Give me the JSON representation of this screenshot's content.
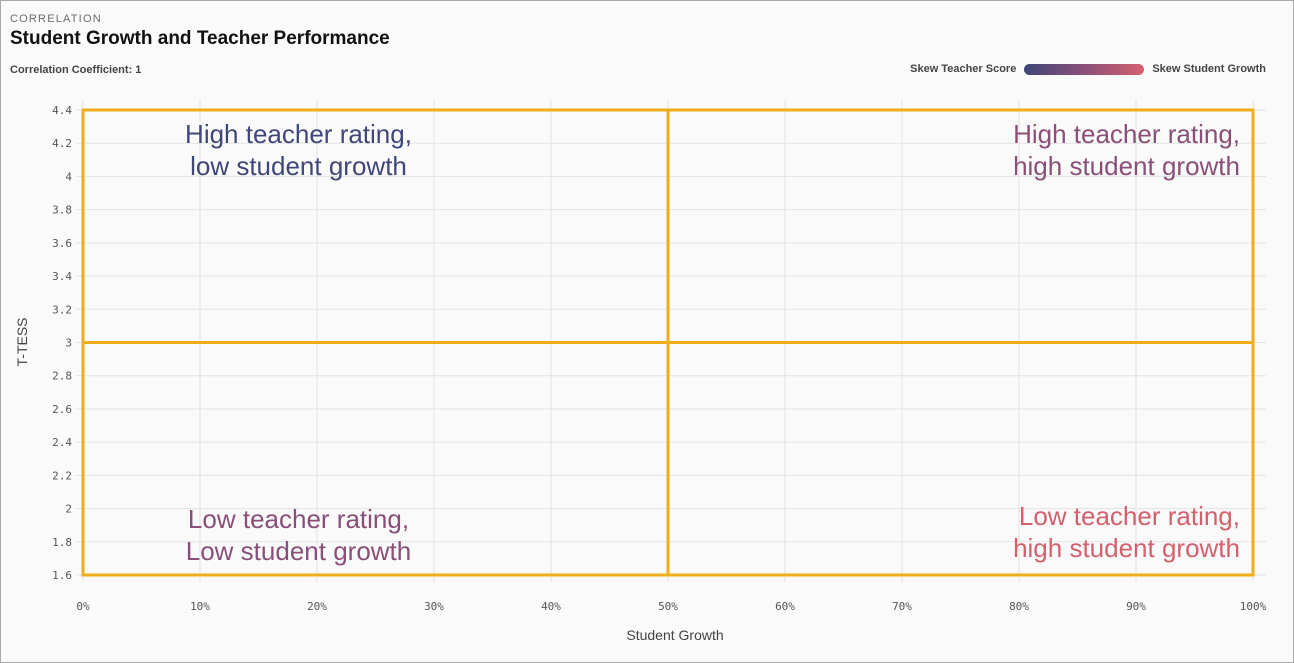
{
  "header": {
    "eyebrow": "CORRELATION",
    "title": "Student Growth and Teacher Performance",
    "coefficient": "Correlation Coefficient: 1"
  },
  "legend": {
    "left_label": "Skew Teacher Score",
    "right_label": "Skew Student Growth"
  },
  "colors": {
    "quadrant_border": "#f0ad1b",
    "grid": "#e3e3e3",
    "purple": "#3f4778",
    "mauve": "#8a4f78",
    "rose": "#d4606e"
  },
  "chart_data": {
    "type": "scatter",
    "xlabel": "Student Growth",
    "ylabel": "T-TESS",
    "xlim": [
      0,
      100
    ],
    "ylim": [
      1.6,
      4.4
    ],
    "x_ticks": [
      "0%",
      "10%",
      "20%",
      "30%",
      "40%",
      "50%",
      "60%",
      "70%",
      "80%",
      "90%",
      "100%"
    ],
    "y_ticks": [
      "1.6",
      "1.8",
      "2",
      "2.2",
      "2.4",
      "2.6",
      "2.8",
      "3",
      "3.2",
      "3.4",
      "3.6",
      "3.8",
      "4",
      "4.2",
      "4.4"
    ],
    "x_divider": 50,
    "y_divider": 3,
    "grid": true,
    "legend_position": "top-right",
    "quadrants": [
      {
        "lines": [
          "High teacher rating,",
          "low student growth"
        ],
        "position": "top-left",
        "color": "#3f4778"
      },
      {
        "lines": [
          "High teacher rating,",
          "high student growth"
        ],
        "position": "top-right",
        "color": "#8a4f78"
      },
      {
        "lines": [
          "Low teacher rating,",
          "Low student growth"
        ],
        "position": "bottom-left",
        "color": "#8a4f78"
      },
      {
        "lines": [
          "Low teacher rating,",
          "high student growth"
        ],
        "position": "bottom-right",
        "color": "#d4606e"
      }
    ]
  }
}
